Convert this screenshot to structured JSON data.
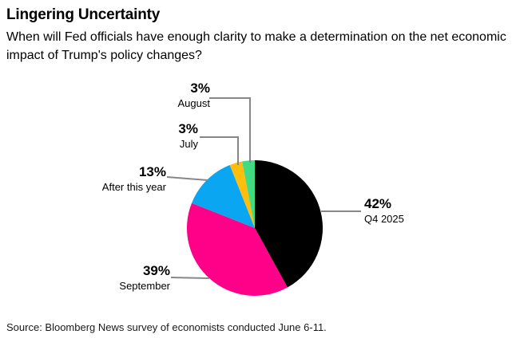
{
  "header": {
    "title": "Lingering Uncertainty",
    "subtitle": "When will Fed officials have enough clarity to make a determination on the net economic impact of Trump's policy changes?"
  },
  "chart_data": {
    "type": "pie",
    "title": "Lingering Uncertainty",
    "question": "When will Fed officials have enough clarity to make a determination on the net economic impact of Trump's policy changes?",
    "unit": "percent",
    "start_angle_deg": 0,
    "direction": "clockwise",
    "legend_position": "outside-labels-with-leader-lines",
    "slices": [
      {
        "label": "Q4 2025",
        "value": 42,
        "pct_label": "42%",
        "color": "#000000"
      },
      {
        "label": "September",
        "value": 39,
        "pct_label": "39%",
        "color": "#ff0088"
      },
      {
        "label": "After this year",
        "value": 13,
        "pct_label": "13%",
        "color": "#0ba6f2"
      },
      {
        "label": "July",
        "value": 3,
        "pct_label": "3%",
        "color": "#ffbe0b"
      },
      {
        "label": "August",
        "value": 3,
        "pct_label": "3%",
        "color": "#41dc82"
      }
    ],
    "leader_line_color": "#878787",
    "background_color": "#ffffff"
  },
  "footer": {
    "source": "Source: Bloomberg News survey of economists conducted June 6-11."
  }
}
